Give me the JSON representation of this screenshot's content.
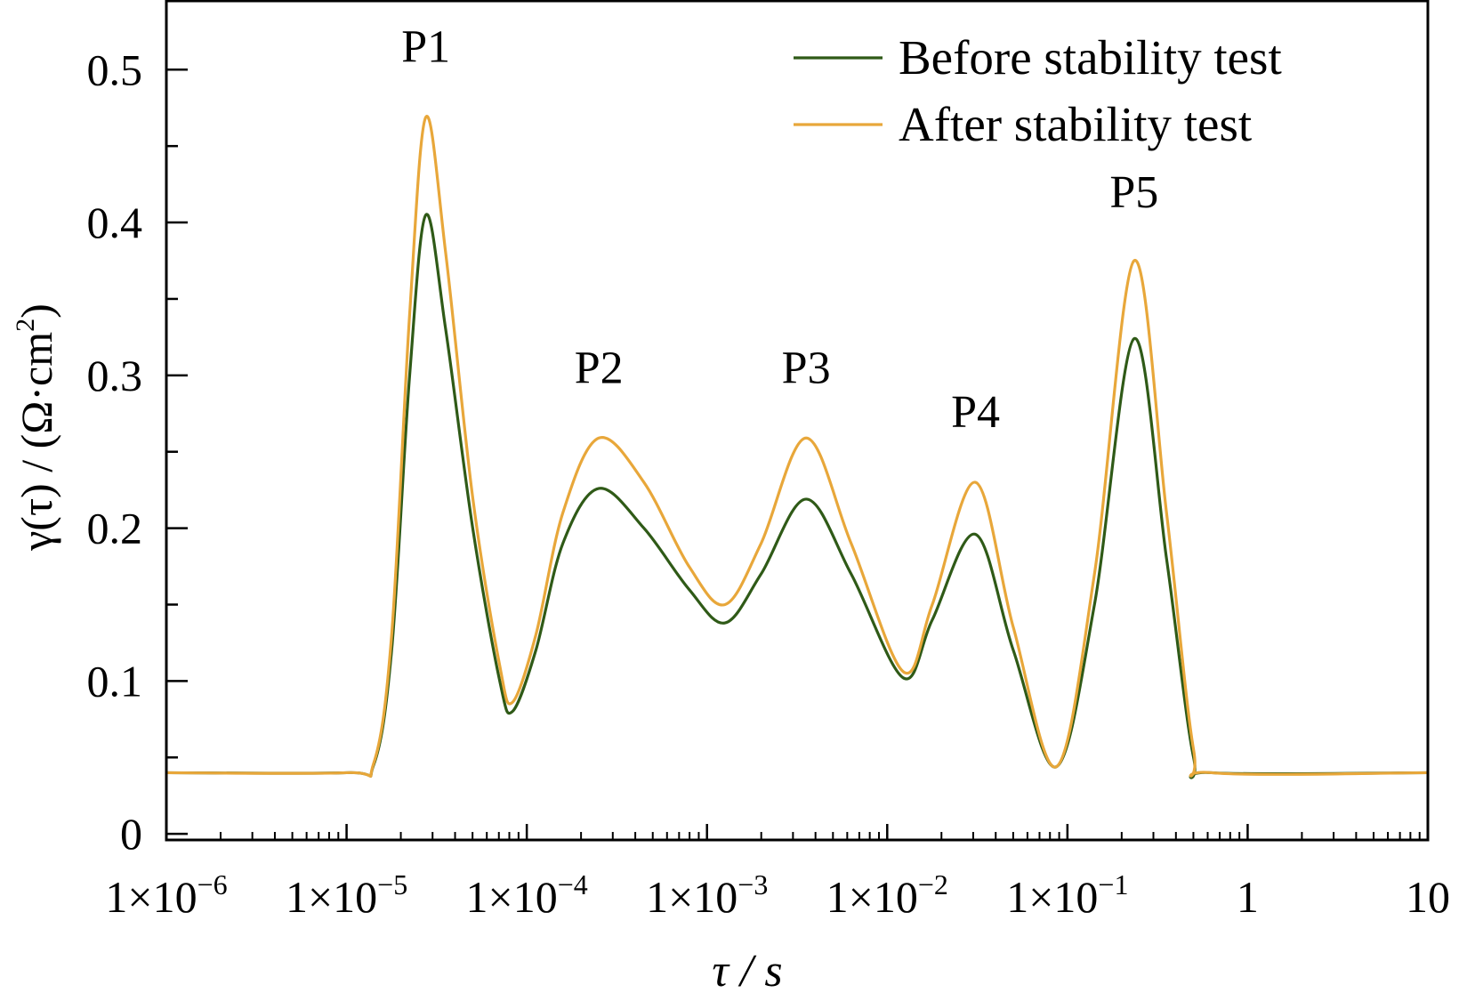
{
  "chart_data": {
    "type": "line",
    "title": "",
    "xlabel": "τ / s",
    "ylabel": {
      "main": "γ(τ) / (Ω·cm",
      "sup": "2",
      "end": ")"
    },
    "xscale": "log",
    "xlim_log10": [
      -6,
      1
    ],
    "ylim": [
      -0.004,
      0.545
    ],
    "x_ticks": [
      {
        "log10": -6,
        "base": "1×10",
        "exp": "−6"
      },
      {
        "log10": -5,
        "base": "1×10",
        "exp": "−5"
      },
      {
        "log10": -4,
        "base": "1×10",
        "exp": "−4"
      },
      {
        "log10": -3,
        "base": "1×10",
        "exp": "−3"
      },
      {
        "log10": -2,
        "base": "1×10",
        "exp": "−2"
      },
      {
        "log10": -1,
        "base": "1×10",
        "exp": "−1"
      },
      {
        "log10": 0,
        "base": "1",
        "exp": ""
      },
      {
        "log10": 1,
        "base": "10",
        "exp": ""
      }
    ],
    "y_ticks": [
      {
        "value": 0,
        "label": "0"
      },
      {
        "value": 0.1,
        "label": "0.1"
      },
      {
        "value": 0.2,
        "label": "0.2"
      },
      {
        "value": 0.3,
        "label": "0.3"
      },
      {
        "value": 0.4,
        "label": "0.4"
      },
      {
        "value": 0.5,
        "label": "0.5"
      }
    ],
    "legend_position": "top-right",
    "series": [
      {
        "name": "Before stability test",
        "color": "#2f5a17",
        "log10_tau": [
          -6,
          -5.0,
          -4.85,
          -4.75,
          -4.65,
          -4.56,
          -4.45,
          -4.3,
          -4.15,
          -4.08,
          -3.95,
          -3.8,
          -3.6,
          -3.35,
          -3.1,
          -2.9,
          -2.7,
          -2.45,
          -2.2,
          -1.91,
          -1.75,
          -1.51,
          -1.3,
          -1.06,
          -0.85,
          -0.63,
          -0.45,
          -0.3,
          -0.2,
          1
        ],
        "values": [
          0.04,
          0.04,
          0.045,
          0.12,
          0.3,
          0.405,
          0.33,
          0.2,
          0.1,
          0.08,
          0.12,
          0.19,
          0.226,
          0.2,
          0.16,
          0.138,
          0.17,
          0.219,
          0.17,
          0.102,
          0.14,
          0.196,
          0.12,
          0.044,
          0.15,
          0.324,
          0.18,
          0.05,
          0.04,
          0.04
        ]
      },
      {
        "name": "After stability test",
        "color": "#e8a73a",
        "log10_tau": [
          -6,
          -5.0,
          -4.85,
          -4.75,
          -4.65,
          -4.56,
          -4.45,
          -4.3,
          -4.15,
          -4.08,
          -3.95,
          -3.8,
          -3.6,
          -3.35,
          -3.1,
          -2.9,
          -2.7,
          -2.45,
          -2.2,
          -1.91,
          -1.75,
          -1.51,
          -1.3,
          -1.06,
          -0.85,
          -0.63,
          -0.45,
          -0.3,
          -0.2,
          1
        ],
        "values": [
          0.04,
          0.04,
          0.046,
          0.13,
          0.34,
          0.469,
          0.38,
          0.22,
          0.11,
          0.086,
          0.13,
          0.21,
          0.259,
          0.23,
          0.175,
          0.15,
          0.19,
          0.259,
          0.19,
          0.106,
          0.15,
          0.23,
          0.135,
          0.044,
          0.17,
          0.375,
          0.21,
          0.055,
          0.04,
          0.04
        ]
      }
    ],
    "annotations": [
      {
        "text": "P1",
        "log10_tau": -4.56,
        "value": 0.505
      },
      {
        "text": "P2",
        "log10_tau": -3.6,
        "value": 0.295
      },
      {
        "text": "P3",
        "log10_tau": -2.45,
        "value": 0.295
      },
      {
        "text": "P4",
        "log10_tau": -1.51,
        "value": 0.266
      },
      {
        "text": "P5",
        "log10_tau": -0.63,
        "value": 0.41
      }
    ]
  }
}
